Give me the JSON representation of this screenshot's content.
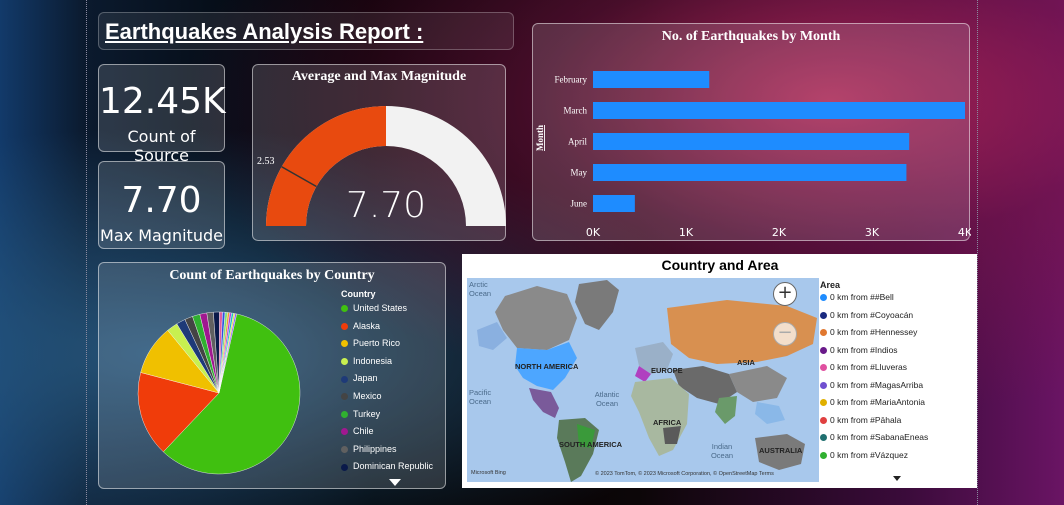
{
  "report_title": "Earthquakes Analysis Report :",
  "kpis": {
    "count_value": "12.45K",
    "count_label": "Count of Source",
    "max_value": "7.70",
    "max_label": "Max Magnitude"
  },
  "colors": {
    "bar": "#1e8cff",
    "gauge_fill": "#e84a0f",
    "gauge_empty": "#f2f2f2"
  },
  "chart_data": [
    {
      "type": "gauge",
      "title": "Average and Max Magnitude",
      "value": 7.7,
      "value_label": "7.70",
      "target": 2.53,
      "target_label": "2.53",
      "min": 0,
      "max": 15.4
    },
    {
      "type": "bar",
      "orientation": "horizontal",
      "title": "No. of Earthquakes by Month",
      "ylabel": "Month",
      "categories": [
        "February",
        "March",
        "April",
        "May",
        "June"
      ],
      "values": [
        1250,
        4000,
        3400,
        3370,
        450
      ],
      "xlim": [
        0,
        4000
      ],
      "x_ticks": [
        "0K",
        "1K",
        "2K",
        "3K",
        "4K"
      ]
    },
    {
      "type": "pie",
      "title": "Count of Earthquakes by Country",
      "legend_title": "Country",
      "legend_placement": "right",
      "slices": [
        {
          "name": "United States",
          "value": 58.5,
          "color": "#40c010"
        },
        {
          "name": "Alaska",
          "value": 17.0,
          "color": "#f03c0a"
        },
        {
          "name": "Puerto Rico",
          "value": 10.0,
          "color": "#f0c000"
        },
        {
          "name": "Indonesia",
          "value": 2.2,
          "color": "#c8f050"
        },
        {
          "name": "Japan",
          "value": 1.8,
          "color": "#1e3a78"
        },
        {
          "name": "Mexico",
          "value": 1.6,
          "color": "#444444"
        },
        {
          "name": "Turkey",
          "value": 1.5,
          "color": "#30b030"
        },
        {
          "name": "Chile",
          "value": 1.4,
          "color": "#a01890"
        },
        {
          "name": "Philippines",
          "value": 1.3,
          "color": "#606060"
        },
        {
          "name": "Dominican Republic",
          "value": 1.2,
          "color": "#0a1a4a"
        }
      ],
      "other_slices": [
        {
          "value": 0.6,
          "color": "#e060a0"
        },
        {
          "value": 0.5,
          "color": "#3050e0"
        },
        {
          "value": 0.5,
          "color": "#80e080"
        },
        {
          "value": 0.4,
          "color": "#f0a030"
        },
        {
          "value": 0.4,
          "color": "#b040e0"
        },
        {
          "value": 0.4,
          "color": "#20c0c0"
        },
        {
          "value": 0.3,
          "color": "#e0e040"
        },
        {
          "value": 0.3,
          "color": "#9050ff"
        }
      ]
    }
  ],
  "map": {
    "title": "Country and Area",
    "labels": {
      "arctic": "Arctic Ocean",
      "north_america": "NORTH AMERICA",
      "europe": "EUROPE",
      "asia": "ASIA",
      "pacific": "Pacific Ocean",
      "atlantic": "Atlantic Ocean",
      "africa": "AFRICA",
      "south_america": "SOUTH AMERICA",
      "indian": "Indian Ocean",
      "australia": "AUSTRALIA"
    },
    "attribution": "© 2023 TomTom, © 2023 Microsoft Corporation, © OpenStreetMap  Terms",
    "bing": "Microsoft Bing",
    "zoom_in": "+",
    "zoom_out": "−",
    "legend_title": "Area",
    "legend": [
      {
        "label": "0 km from ##Bell",
        "color": "#1e8cff"
      },
      {
        "label": "0 km from #Coyoacán",
        "color": "#1a2a80"
      },
      {
        "label": "0 km from #Hennessey",
        "color": "#e07830"
      },
      {
        "label": "0 km from #Indios",
        "color": "#6a1a8a"
      },
      {
        "label": "0 km from #Lluveras",
        "color": "#e050a0"
      },
      {
        "label": "0 km from #MagasArriba",
        "color": "#7050d0"
      },
      {
        "label": "0 km from #MariaAntonia",
        "color": "#e0b000"
      },
      {
        "label": "0 km from #Pāhala",
        "color": "#e04040"
      },
      {
        "label": "0 km from #SabanaEneas",
        "color": "#207070"
      },
      {
        "label": "0 km from #Vázquez",
        "color": "#30b030"
      }
    ]
  }
}
